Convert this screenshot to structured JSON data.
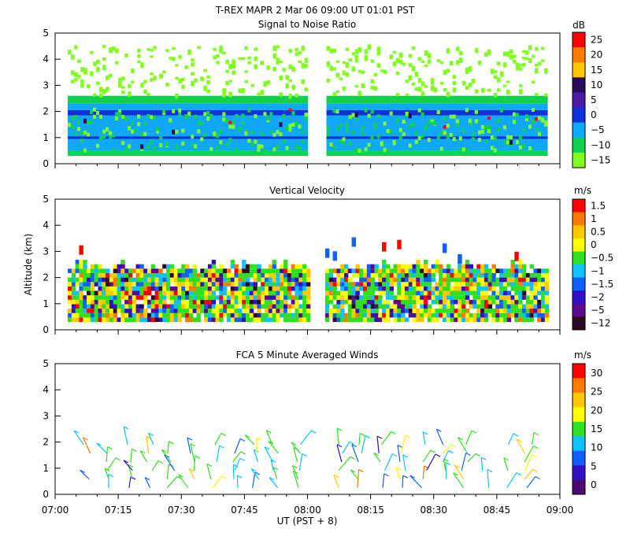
{
  "header": {
    "line": "T-REX   MAPR   2 Mar 06   09:00 UT   01:01   PST"
  },
  "chart_data": [
    {
      "type": "heatmap",
      "title": "Signal to Noise Ratio",
      "ylabel": "",
      "yticks": [
        "0",
        "1",
        "2",
        "3",
        "4",
        "5"
      ],
      "ylim": [
        0,
        5
      ],
      "xlim_minutes": [
        0,
        120
      ],
      "data_gap_minutes": [
        60,
        64
      ],
      "colorbar": {
        "unit": "dB",
        "labels": [
          "25",
          "20",
          "15",
          "10",
          "5",
          "0",
          "−5",
          "−10",
          "−15"
        ],
        "colors": [
          "#ff0000",
          "#ff7a00",
          "#ffc800",
          "#2a0a5a",
          "#4a1aa0",
          "#1030d8",
          "#10a8ff",
          "#10d050",
          "#80ff20"
        ]
      },
      "layers": [
        {
          "band": "0.3-2.3 km",
          "dominant": "-5 to 0",
          "color": "#10a8ff"
        },
        {
          "band": "2.3-2.6 km",
          "dominant": "-10",
          "color": "#10d050"
        },
        {
          "band": "2.6-4.5 km",
          "dominant": "-15 (sparse)",
          "color": "#80ff20"
        }
      ]
    },
    {
      "type": "heatmap",
      "title": "Vertical Velocity",
      "ylabel": "Altitude (km)",
      "yticks": [
        "0",
        "1",
        "2",
        "3",
        "4",
        "5"
      ],
      "ylim": [
        0,
        5
      ],
      "xlim_minutes": [
        0,
        120
      ],
      "colorbar": {
        "unit": "m/s",
        "labels": [
          "1.5",
          "1",
          "0.5",
          "0",
          "−0.5",
          "−1",
          "−1.5",
          "−2",
          "−5",
          "−12"
        ],
        "colors": [
          "#ff0000",
          "#ff7a00",
          "#ffc800",
          "#ffff00",
          "#30e020",
          "#10c0ff",
          "#1060ff",
          "#3010c0",
          "#5a0a8a",
          "#2a0a20"
        ]
      }
    },
    {
      "type": "scatter",
      "title": "FCA 5 Minute Averaged Winds",
      "ylabel": "",
      "yticks": [
        "0",
        "1",
        "2",
        "3",
        "4",
        "5"
      ],
      "ylim": [
        0,
        5
      ],
      "xlabel": "UT  (PST + 8)",
      "xticks": [
        "07:00",
        "07:15",
        "07:30",
        "07:45",
        "08:00",
        "08:15",
        "08:30",
        "08:45",
        "09:00"
      ],
      "colorbar": {
        "unit": "m/s",
        "labels": [
          "30",
          "25",
          "20",
          "15",
          "10",
          "5",
          "0"
        ],
        "colors": [
          "#ff0000",
          "#ff7a00",
          "#ffc800",
          "#ffff00",
          "#30e020",
          "#10c0ff",
          "#1060ff",
          "#3010c0",
          "#4a0a70"
        ]
      }
    }
  ]
}
